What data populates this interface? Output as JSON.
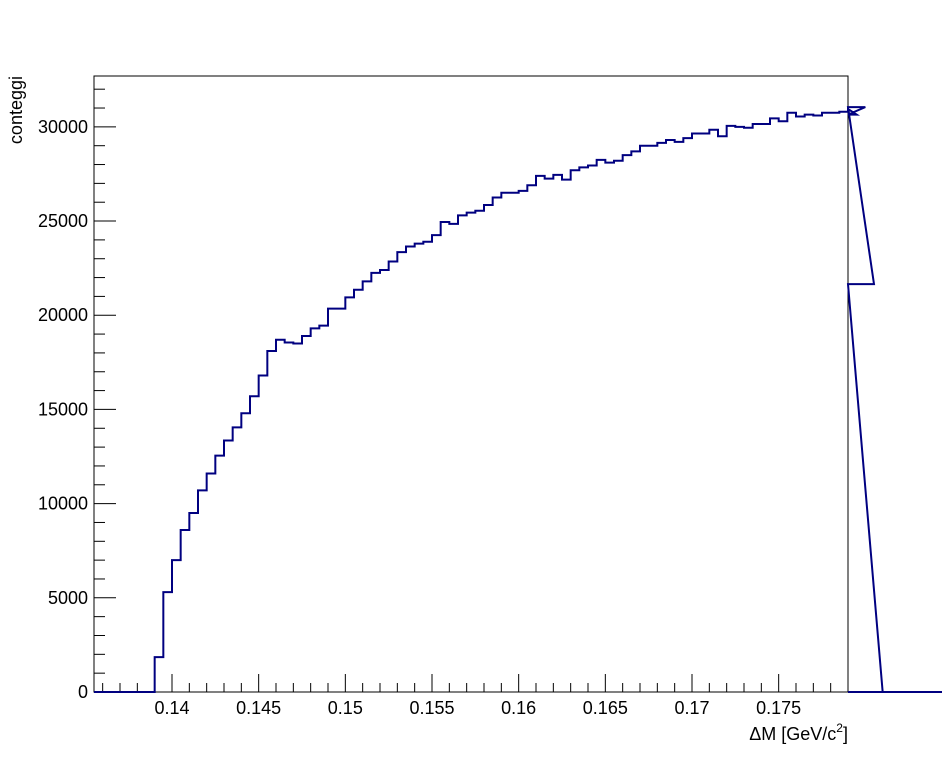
{
  "chart_data": {
    "type": "histogram",
    "title": "",
    "xlabel": "ΔM [GeV/c",
    "xlabel_sup": "2",
    "xlabel_close": "]",
    "ylabel": "conteggi",
    "xlim": [
      0.1355,
      0.179
    ],
    "ylim": [
      0,
      32700
    ],
    "x_ticks": [
      0.14,
      0.145,
      0.15,
      0.155,
      0.16,
      0.165,
      0.17,
      0.175
    ],
    "x_tick_labels": [
      "0.14",
      "0.145",
      "0.15",
      "0.155",
      "0.16",
      "0.165",
      "0.17",
      "0.175"
    ],
    "y_ticks": [
      0,
      5000,
      10000,
      15000,
      20000,
      25000,
      30000
    ],
    "y_tick_labels": [
      "0",
      "5000",
      "10000",
      "15000",
      "20000",
      "25000",
      "30000"
    ],
    "bin_start": 0.1355,
    "bin_width": 0.0005,
    "values": [
      0,
      0,
      0,
      0,
      0,
      0,
      0,
      1850,
      5300,
      7000,
      8600,
      9500,
      10700,
      11600,
      12550,
      13350,
      14050,
      14800,
      15700,
      16800,
      18100,
      18700,
      18550,
      18500,
      18900,
      19300,
      19450,
      20350,
      20350,
      20950,
      21350,
      21800,
      22250,
      22400,
      22850,
      23350,
      23650,
      23800,
      23900,
      24250,
      24950,
      24850,
      25300,
      25450,
      25550,
      25850,
      26250,
      26500,
      26500,
      26600,
      26900,
      27400,
      27250,
      27450,
      27200,
      27700,
      27850,
      27950,
      28250,
      28100,
      28200,
      28500,
      28700,
      29000,
      29000,
      29150,
      29300,
      29200,
      29400,
      29650,
      29650,
      29850,
      29500,
      30050,
      30000,
      29950,
      30150,
      30150,
      30450,
      30300,
      30750,
      30550,
      30650,
      30600,
      30750,
      30750,
      30800,
      30950,
      30650,
      31050,
      21650,
      0,
      0,
      0,
      0,
      0,
      0,
      0,
      0,
      0,
      0,
      0,
      0,
      0,
      0,
      0,
      0
    ],
    "line_color": "#000080",
    "grid": false,
    "legend": false
  }
}
